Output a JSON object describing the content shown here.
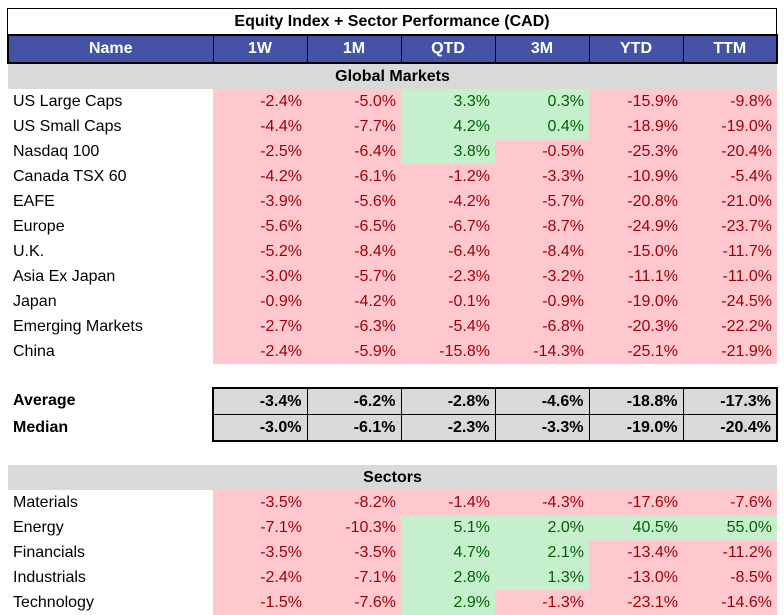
{
  "title": "Equity Index + Sector Performance (CAD)",
  "columns": [
    "Name",
    "1W",
    "1M",
    "QTD",
    "3M",
    "YTD",
    "TTM"
  ],
  "sections": {
    "global": "Global Markets",
    "sectors": "Sectors"
  },
  "global_rows": [
    {
      "name": "US Large Caps",
      "values": [
        "-2.4%",
        "-5.0%",
        "3.3%",
        "0.3%",
        "-15.9%",
        "-9.8%"
      ],
      "pos": [
        false,
        false,
        true,
        true,
        false,
        false
      ]
    },
    {
      "name": "US Small Caps",
      "values": [
        "-4.4%",
        "-7.7%",
        "4.2%",
        "0.4%",
        "-18.9%",
        "-19.0%"
      ],
      "pos": [
        false,
        false,
        true,
        true,
        false,
        false
      ]
    },
    {
      "name": "Nasdaq 100",
      "values": [
        "-2.5%",
        "-6.4%",
        "3.8%",
        "-0.5%",
        "-25.3%",
        "-20.4%"
      ],
      "pos": [
        false,
        false,
        true,
        false,
        false,
        false
      ]
    },
    {
      "name": "Canada TSX 60",
      "values": [
        "-4.2%",
        "-6.1%",
        "-1.2%",
        "-3.3%",
        "-10.9%",
        "-5.4%"
      ],
      "pos": [
        false,
        false,
        false,
        false,
        false,
        false
      ]
    },
    {
      "name": "EAFE",
      "values": [
        "-3.9%",
        "-5.6%",
        "-4.2%",
        "-5.7%",
        "-20.8%",
        "-21.0%"
      ],
      "pos": [
        false,
        false,
        false,
        false,
        false,
        false
      ]
    },
    {
      "name": "Europe",
      "values": [
        "-5.6%",
        "-6.5%",
        "-6.7%",
        "-8.7%",
        "-24.9%",
        "-23.7%"
      ],
      "pos": [
        false,
        false,
        false,
        false,
        false,
        false
      ]
    },
    {
      "name": "U.K.",
      "values": [
        "-5.2%",
        "-8.4%",
        "-6.4%",
        "-8.4%",
        "-15.0%",
        "-11.7%"
      ],
      "pos": [
        false,
        false,
        false,
        false,
        false,
        false
      ]
    },
    {
      "name": "Asia Ex Japan",
      "values": [
        "-3.0%",
        "-5.7%",
        "-2.3%",
        "-3.2%",
        "-11.1%",
        "-11.0%"
      ],
      "pos": [
        false,
        false,
        false,
        false,
        false,
        false
      ]
    },
    {
      "name": "Japan",
      "values": [
        "-0.9%",
        "-4.2%",
        "-0.1%",
        "-0.9%",
        "-19.0%",
        "-24.5%"
      ],
      "pos": [
        false,
        false,
        false,
        false,
        false,
        false
      ]
    },
    {
      "name": "Emerging Markets",
      "values": [
        "-2.7%",
        "-6.3%",
        "-5.4%",
        "-6.8%",
        "-20.3%",
        "-22.2%"
      ],
      "pos": [
        false,
        false,
        false,
        false,
        false,
        false
      ]
    },
    {
      "name": "China",
      "values": [
        "-2.4%",
        "-5.9%",
        "-15.8%",
        "-14.3%",
        "-25.1%",
        "-21.9%"
      ],
      "pos": [
        false,
        false,
        false,
        false,
        false,
        false
      ]
    }
  ],
  "stats": [
    {
      "name": "Average",
      "values": [
        "-3.4%",
        "-6.2%",
        "-2.8%",
        "-4.6%",
        "-18.8%",
        "-17.3%"
      ]
    },
    {
      "name": "Median",
      "values": [
        "-3.0%",
        "-6.1%",
        "-2.3%",
        "-3.3%",
        "-19.0%",
        "-20.4%"
      ]
    }
  ],
  "sector_rows": [
    {
      "name": "Materials",
      "values": [
        "-3.5%",
        "-8.2%",
        "-1.4%",
        "-4.3%",
        "-17.6%",
        "-7.6%"
      ],
      "pos": [
        false,
        false,
        false,
        false,
        false,
        false
      ]
    },
    {
      "name": "Energy",
      "values": [
        "-7.1%",
        "-10.3%",
        "5.1%",
        "2.0%",
        "40.5%",
        "55.0%"
      ],
      "pos": [
        false,
        false,
        true,
        true,
        true,
        true
      ]
    },
    {
      "name": "Financials",
      "values": [
        "-3.5%",
        "-3.5%",
        "4.7%",
        "2.1%",
        "-13.4%",
        "-11.2%"
      ],
      "pos": [
        false,
        false,
        true,
        true,
        false,
        false
      ]
    },
    {
      "name": "Industrials",
      "values": [
        "-2.4%",
        "-7.1%",
        "2.8%",
        "1.3%",
        "-13.0%",
        "-8.5%"
      ],
      "pos": [
        false,
        false,
        true,
        true,
        false,
        false
      ]
    },
    {
      "name": "Technology",
      "values": [
        "-1.5%",
        "-7.6%",
        "2.9%",
        "-1.3%",
        "-23.1%",
        "-14.6%"
      ],
      "pos": [
        false,
        false,
        true,
        false,
        false,
        false
      ]
    }
  ],
  "colors": {
    "header_bg": "#4453a6",
    "negative_fill": "#ffc7ce",
    "negative_text": "#9c0006",
    "positive_fill": "#c6efce",
    "positive_text": "#006100",
    "section_fill": "#d9d9d9"
  }
}
